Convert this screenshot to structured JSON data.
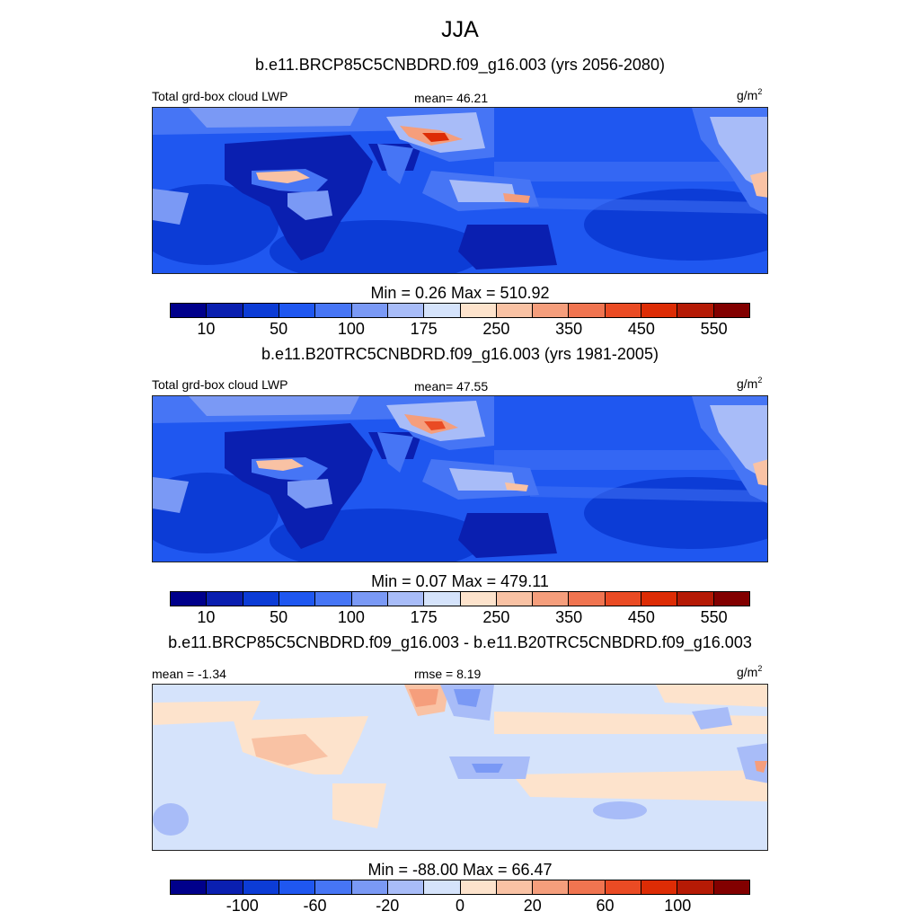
{
  "title": "JJA",
  "units_base": "g/m",
  "units_exp": "2",
  "variable_label": "Total grd-box cloud LWP",
  "panels": [
    {
      "id": "rcp85",
      "case_title": "b.e11.BRCP85C5CNBDRD.f09_g16.003 (yrs 2056-2080)",
      "stat_label": "mean=  46.21",
      "minmax": "Min =   0.26 Max = 510.92",
      "tick_labels": [
        "10",
        "50",
        "100",
        "175",
        "250",
        "350",
        "450",
        "550"
      ],
      "colors": [
        "#00008b",
        "#0a1fb0",
        "#0c3cd6",
        "#1f57f0",
        "#4675f5",
        "#7a99f5",
        "#a8bcf8",
        "#d5e3fb",
        "#fde3cc",
        "#f9c2a4",
        "#f59e7c",
        "#f07450",
        "#ea4b24",
        "#dd2c05",
        "#b51a05",
        "#820000"
      ]
    },
    {
      "id": "hist",
      "case_title": "b.e11.B20TRC5CNBDRD.f09_g16.003 (yrs 1981-2005)",
      "stat_label": "mean=  47.55",
      "minmax": "Min =   0.07 Max = 479.11",
      "tick_labels": [
        "10",
        "50",
        "100",
        "175",
        "250",
        "350",
        "450",
        "550"
      ],
      "colors": [
        "#00008b",
        "#0a1fb0",
        "#0c3cd6",
        "#1f57f0",
        "#4675f5",
        "#7a99f5",
        "#a8bcf8",
        "#d5e3fb",
        "#fde3cc",
        "#f9c2a4",
        "#f59e7c",
        "#f07450",
        "#ea4b24",
        "#dd2c05",
        "#b51a05",
        "#820000"
      ]
    },
    {
      "id": "diff",
      "case_title": "b.e11.BRCP85C5CNBDRD.f09_g16.003 - b.e11.B20TRC5CNBDRD.f09_g16.003",
      "mean_label": "mean =  -1.34",
      "stat_label": "rmse =   8.19",
      "minmax": "Min = -88.00 Max =  66.47",
      "tick_labels": [
        "-100",
        "-60",
        "-20",
        "0",
        "20",
        "60",
        "100"
      ],
      "colors": [
        "#00008b",
        "#0a1fb0",
        "#0c3cd6",
        "#1f57f0",
        "#4675f5",
        "#7a99f5",
        "#a8bcf8",
        "#d5e3fb",
        "#fde3cc",
        "#f9c2a4",
        "#f59e7c",
        "#f07450",
        "#ea4b24",
        "#dd2c05",
        "#b51a05",
        "#820000"
      ]
    }
  ]
}
